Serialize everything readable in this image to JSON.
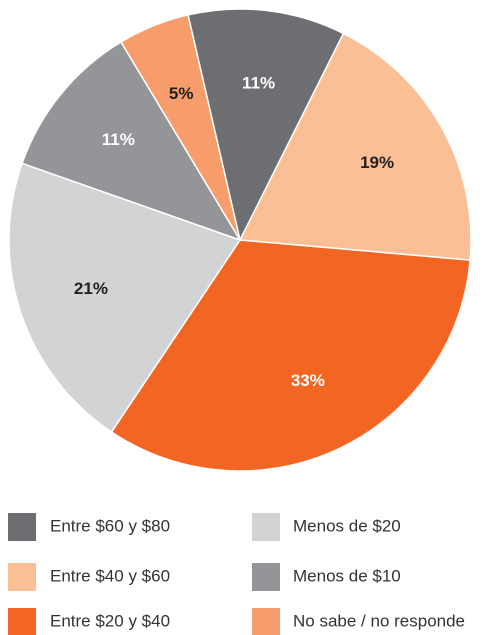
{
  "chart_data": {
    "type": "pie",
    "categories": [
      "Entre $60 y $80",
      "Entre $40 y $60",
      "Entre $20 y $40",
      "Menos de $20",
      "Menos de $10",
      "No sabe / no responde"
    ],
    "values": [
      11,
      19,
      33,
      21,
      11,
      5
    ],
    "value_labels": [
      "11%",
      "19%",
      "33%",
      "21%",
      "11%",
      "5%"
    ],
    "colors": [
      "#6d6e71",
      "#fbbf96",
      "#f26522",
      "#d1d3d4",
      "#939598",
      "#f79d6b"
    ]
  }
}
